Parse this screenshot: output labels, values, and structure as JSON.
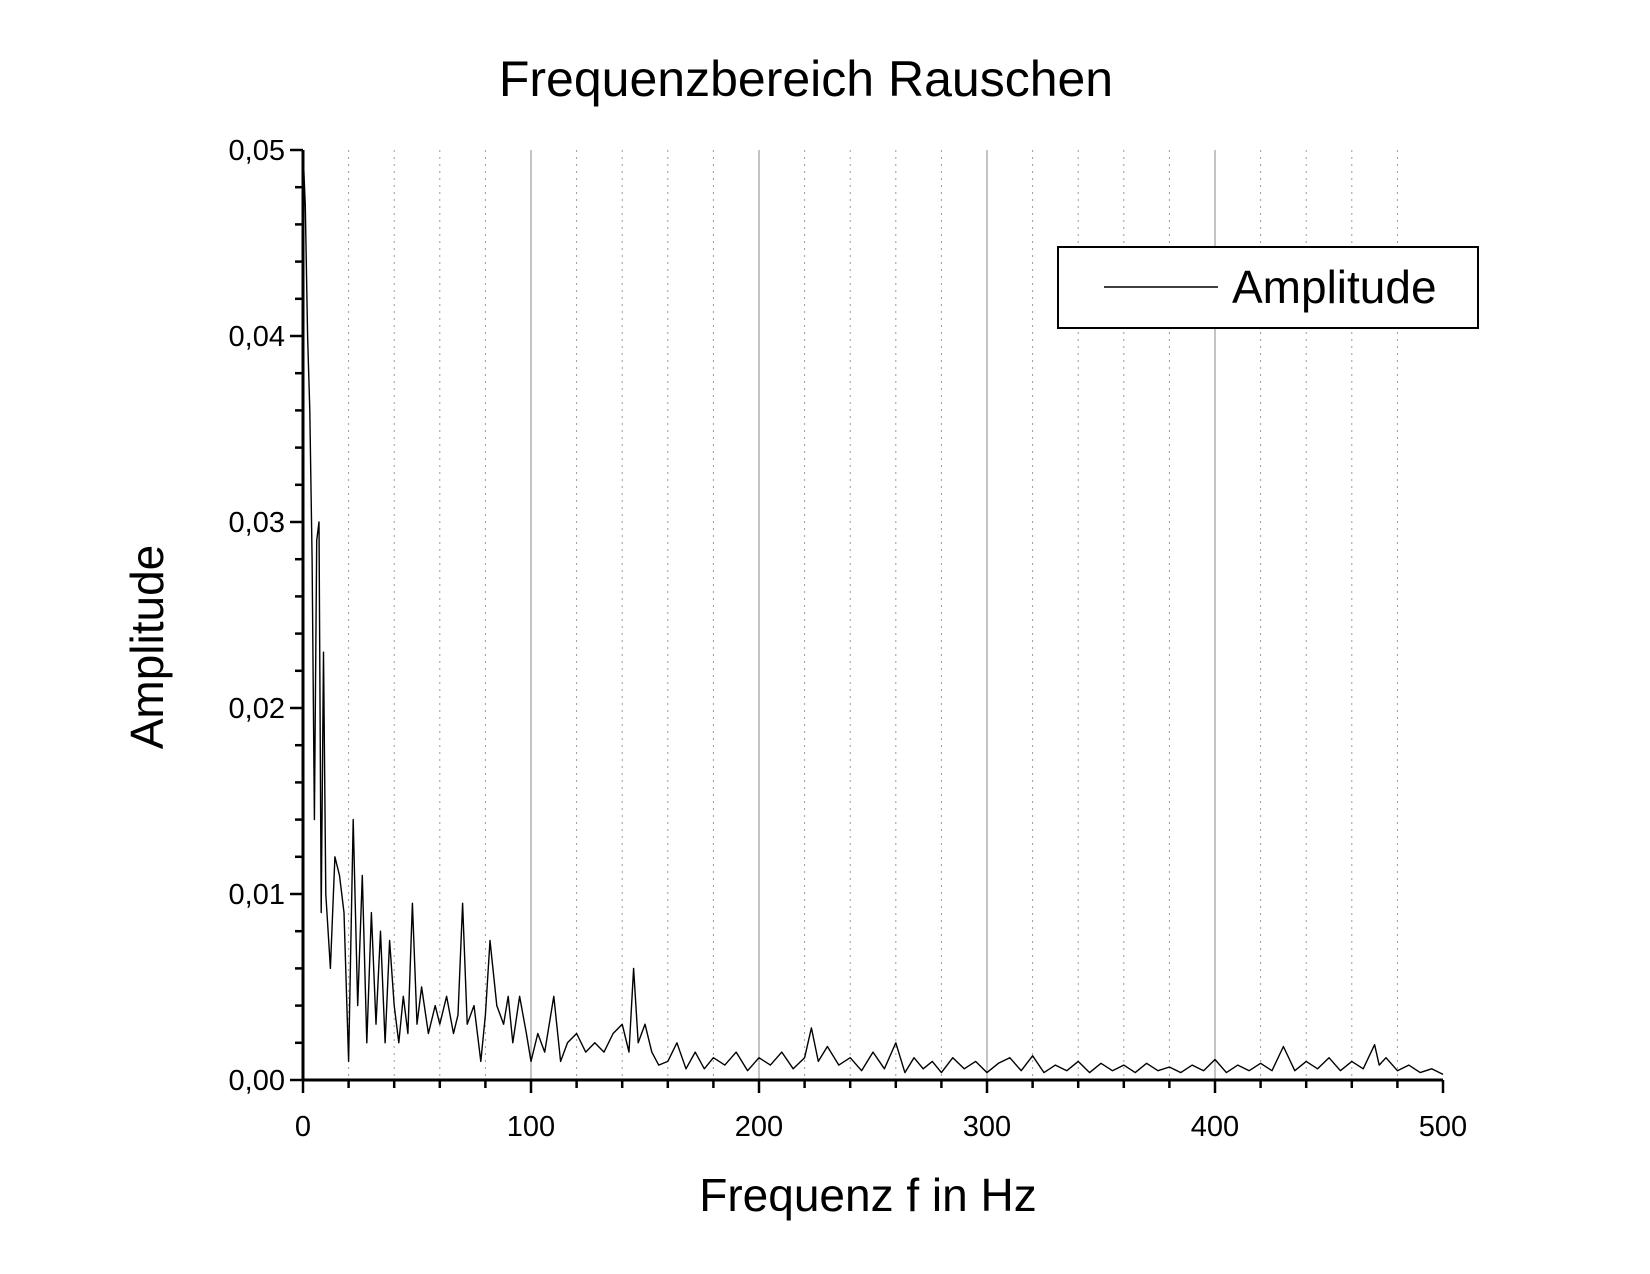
{
  "chart_data": {
    "type": "line",
    "title": "Frequenzbereich Rauschen",
    "xlabel": "Frequenz f in Hz",
    "ylabel": "Amplitude",
    "xlim": [
      0,
      500
    ],
    "ylim": [
      0,
      0.05
    ],
    "x_ticks": [
      "0",
      "100",
      "200",
      "300",
      "400",
      "500"
    ],
    "y_ticks": [
      "0,00",
      "0,01",
      "0,02",
      "0,03",
      "0,04",
      "0,05"
    ],
    "grid": "major solid, minor dotted (vertical only)",
    "legend_position": "top-right",
    "line_color": "#000000",
    "series": [
      {
        "name": "Amplitude",
        "x": [
          0,
          1,
          2,
          3,
          4,
          5,
          6,
          7,
          8,
          9,
          10,
          12,
          14,
          16,
          18,
          20,
          22,
          24,
          26,
          28,
          30,
          32,
          34,
          36,
          38,
          40,
          42,
          44,
          46,
          48,
          50,
          52,
          55,
          58,
          60,
          63,
          66,
          68,
          70,
          72,
          75,
          78,
          80,
          82,
          85,
          88,
          90,
          92,
          95,
          98,
          100,
          103,
          106,
          110,
          113,
          116,
          120,
          124,
          128,
          132,
          136,
          140,
          143,
          145,
          147,
          150,
          153,
          156,
          160,
          164,
          168,
          172,
          176,
          180,
          185,
          190,
          195,
          200,
          205,
          210,
          215,
          220,
          223,
          226,
          230,
          235,
          240,
          245,
          250,
          255,
          260,
          264,
          268,
          272,
          276,
          280,
          285,
          290,
          295,
          300,
          305,
          310,
          315,
          320,
          325,
          330,
          335,
          340,
          345,
          350,
          355,
          360,
          365,
          370,
          375,
          380,
          385,
          390,
          395,
          400,
          405,
          410,
          415,
          420,
          425,
          430,
          435,
          440,
          445,
          450,
          455,
          460,
          465,
          470,
          472,
          475,
          480,
          485,
          490,
          495,
          500
        ],
        "values": [
          0.05,
          0.047,
          0.04,
          0.036,
          0.028,
          0.014,
          0.029,
          0.03,
          0.009,
          0.023,
          0.01,
          0.006,
          0.012,
          0.011,
          0.009,
          0.001,
          0.014,
          0.004,
          0.011,
          0.002,
          0.009,
          0.003,
          0.008,
          0.002,
          0.0075,
          0.004,
          0.002,
          0.0045,
          0.0025,
          0.0095,
          0.003,
          0.005,
          0.0025,
          0.004,
          0.003,
          0.0045,
          0.0025,
          0.0035,
          0.0095,
          0.003,
          0.004,
          0.001,
          0.0035,
          0.0075,
          0.004,
          0.003,
          0.0045,
          0.002,
          0.0045,
          0.0025,
          0.001,
          0.0025,
          0.0015,
          0.0045,
          0.001,
          0.002,
          0.0025,
          0.0015,
          0.002,
          0.0015,
          0.0025,
          0.003,
          0.0015,
          0.006,
          0.002,
          0.003,
          0.0015,
          0.0008,
          0.001,
          0.002,
          0.0006,
          0.0015,
          0.0006,
          0.0012,
          0.0008,
          0.0015,
          0.0005,
          0.0012,
          0.0008,
          0.0015,
          0.0006,
          0.0012,
          0.0028,
          0.001,
          0.0018,
          0.0008,
          0.0012,
          0.0005,
          0.0015,
          0.0006,
          0.002,
          0.0004,
          0.0012,
          0.0006,
          0.001,
          0.0004,
          0.0012,
          0.0006,
          0.001,
          0.0004,
          0.0009,
          0.0012,
          0.0005,
          0.0013,
          0.0004,
          0.0008,
          0.0005,
          0.001,
          0.0004,
          0.0009,
          0.0005,
          0.0008,
          0.0004,
          0.0009,
          0.0005,
          0.0007,
          0.0004,
          0.0008,
          0.0005,
          0.0011,
          0.0004,
          0.0008,
          0.0005,
          0.0009,
          0.0005,
          0.0018,
          0.0005,
          0.001,
          0.0006,
          0.0012,
          0.0005,
          0.001,
          0.0006,
          0.0019,
          0.0008,
          0.0012,
          0.0005,
          0.0008,
          0.0004,
          0.0006,
          0.0003
        ]
      }
    ]
  }
}
